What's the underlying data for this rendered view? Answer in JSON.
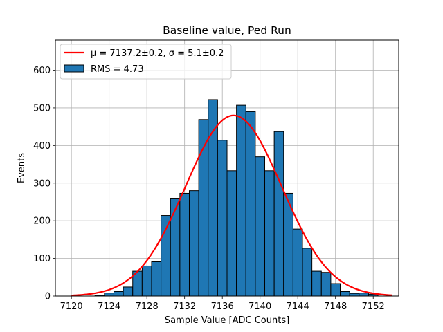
{
  "chart_data": {
    "type": "histogram",
    "title": "Baseline value, Ped Run",
    "xlabel": "Sample Value [ADC Counts]",
    "ylabel": "Events",
    "xlim": [
      7118.3,
      7154.7
    ],
    "ylim": [
      0,
      680
    ],
    "xticks": [
      7120,
      7124,
      7128,
      7132,
      7136,
      7140,
      7144,
      7148,
      7152
    ],
    "yticks": [
      0,
      100,
      200,
      300,
      400,
      500,
      600
    ],
    "grid": true,
    "legend_position": "upper-left",
    "bin_width": 1,
    "bins": [
      {
        "x0": 7122.5,
        "value": 2
      },
      {
        "x0": 7123.5,
        "value": 8
      },
      {
        "x0": 7124.5,
        "value": 12
      },
      {
        "x0": 7125.5,
        "value": 24
      },
      {
        "x0": 7126.5,
        "value": 66
      },
      {
        "x0": 7127.5,
        "value": 80
      },
      {
        "x0": 7128.5,
        "value": 91
      },
      {
        "x0": 7129.5,
        "value": 214
      },
      {
        "x0": 7130.5,
        "value": 260
      },
      {
        "x0": 7131.5,
        "value": 273
      },
      {
        "x0": 7132.5,
        "value": 280
      },
      {
        "x0": 7133.5,
        "value": 469
      },
      {
        "x0": 7134.5,
        "value": 522
      },
      {
        "x0": 7135.5,
        "value": 414
      },
      {
        "x0": 7136.5,
        "value": 333
      },
      {
        "x0": 7137.5,
        "value": 507
      },
      {
        "x0": 7138.5,
        "value": 490
      },
      {
        "x0": 7139.5,
        "value": 370
      },
      {
        "x0": 7140.5,
        "value": 333
      },
      {
        "x0": 7141.5,
        "value": 437
      },
      {
        "x0": 7142.5,
        "value": 273
      },
      {
        "x0": 7143.5,
        "value": 178
      },
      {
        "x0": 7144.5,
        "value": 127
      },
      {
        "x0": 7145.5,
        "value": 66
      },
      {
        "x0": 7146.5,
        "value": 63
      },
      {
        "x0": 7147.5,
        "value": 33
      },
      {
        "x0": 7148.5,
        "value": 12
      },
      {
        "x0": 7149.5,
        "value": 7
      },
      {
        "x0": 7150.5,
        "value": 8
      },
      {
        "x0": 7151.5,
        "value": 5
      }
    ],
    "fit": {
      "type": "gaussian",
      "mu": 7137.2,
      "sigma": 5.1,
      "peak": 480,
      "x_range": [
        7120,
        7154
      ],
      "color": "#ff0000"
    },
    "bar_color": "#1f77b4",
    "bar_edge_color": "#000000",
    "legend": [
      {
        "label": "μ = 7137.2±0.2, σ = 5.1±0.2",
        "kind": "line",
        "color": "#ff0000"
      },
      {
        "label": "RMS = 4.73",
        "kind": "patch",
        "color": "#1f77b4"
      }
    ]
  }
}
